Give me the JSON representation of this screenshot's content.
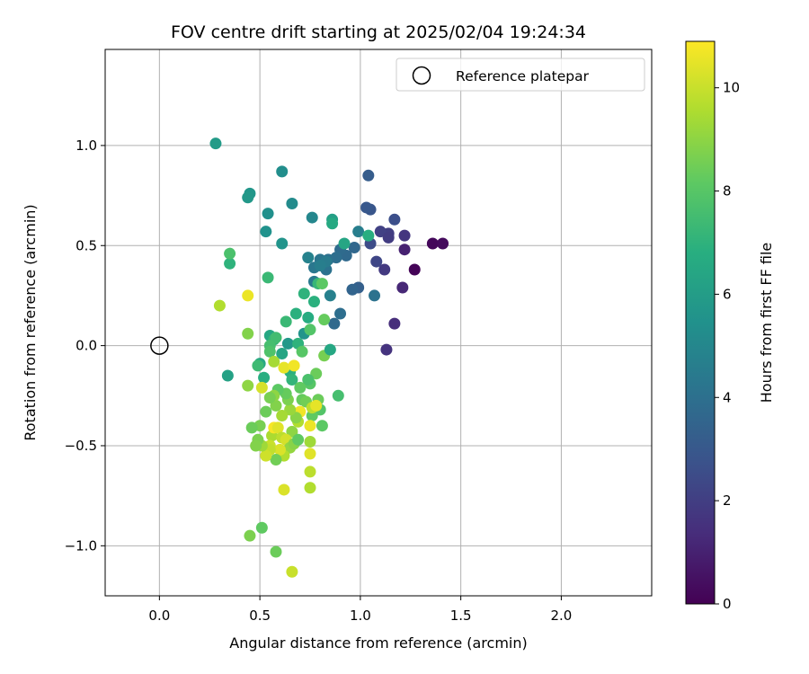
{
  "chart_data": {
    "type": "scatter",
    "title": "FOV centre drift starting at 2025/02/04 19:24:34",
    "xlabel": "Angular distance from reference (arcmin)",
    "ylabel": "Rotation from reference (arcmin)",
    "xlim": [
      -0.27,
      2.45
    ],
    "ylim": [
      -1.25,
      1.48
    ],
    "xticks": [
      0.0,
      0.5,
      1.0,
      1.5,
      2.0
    ],
    "xtick_labels": [
      "0.0",
      "0.5",
      "1.0",
      "1.5",
      "2.0"
    ],
    "yticks": [
      -1.0,
      -0.5,
      0.0,
      0.5,
      1.0
    ],
    "ytick_labels": [
      "−1.0",
      "−0.5",
      "0.0",
      "0.5",
      "1.0"
    ],
    "grid": true,
    "legend": {
      "placement": "top-right",
      "entries": [
        "Reference platepar"
      ]
    },
    "colorbar": {
      "label": "Hours from first FF file",
      "range": [
        0,
        10.9
      ],
      "ticks": [
        0,
        2,
        4,
        6,
        8,
        10
      ],
      "tick_labels": [
        "0",
        "2",
        "4",
        "6",
        "8",
        "10"
      ],
      "colormap": "viridis"
    },
    "reference": {
      "x": 0.0,
      "y": 0.0,
      "label": "Reference platepar"
    },
    "points": [
      [
        1.27,
        0.38,
        0.1
      ],
      [
        1.36,
        0.51,
        0.2
      ],
      [
        1.41,
        0.51,
        0.3
      ],
      [
        1.22,
        0.48,
        1.0
      ],
      [
        1.21,
        0.29,
        1.2
      ],
      [
        1.17,
        0.11,
        1.4
      ],
      [
        1.13,
        -0.02,
        1.6
      ],
      [
        1.12,
        0.38,
        1.8
      ],
      [
        1.14,
        0.56,
        2.0
      ],
      [
        1.1,
        0.57,
        2.1
      ],
      [
        1.08,
        0.42,
        2.3
      ],
      [
        1.05,
        0.51,
        2.5
      ],
      [
        1.17,
        0.63,
        2.6
      ],
      [
        1.22,
        0.55,
        1.7
      ],
      [
        1.14,
        0.54,
        1.9
      ],
      [
        1.05,
        0.68,
        2.9
      ],
      [
        1.03,
        0.69,
        3.0
      ],
      [
        1.04,
        0.85,
        3.2
      ],
      [
        0.99,
        0.29,
        3.3
      ],
      [
        0.96,
        0.28,
        3.5
      ],
      [
        0.97,
        0.49,
        3.6
      ],
      [
        0.93,
        0.45,
        3.7
      ],
      [
        0.9,
        0.48,
        3.8
      ],
      [
        0.88,
        0.44,
        3.9
      ],
      [
        0.84,
        0.43,
        4.0
      ],
      [
        0.87,
        0.11,
        3.7
      ],
      [
        0.9,
        0.16,
        3.9
      ],
      [
        0.83,
        0.38,
        4.1
      ],
      [
        0.8,
        0.43,
        4.2
      ],
      [
        0.77,
        0.39,
        4.3
      ],
      [
        0.77,
        0.32,
        4.4
      ],
      [
        0.83,
        0.42,
        4.5
      ],
      [
        0.8,
        0.4,
        4.6
      ],
      [
        0.85,
        0.25,
        4.7
      ],
      [
        0.74,
        0.44,
        4.8
      ],
      [
        0.76,
        0.64,
        5.0
      ],
      [
        0.66,
        0.71,
        5.2
      ],
      [
        0.61,
        0.87,
        5.3
      ],
      [
        0.54,
        0.66,
        5.4
      ],
      [
        0.53,
        0.57,
        5.5
      ],
      [
        0.61,
        0.51,
        5.6
      ],
      [
        0.45,
        0.76,
        5.7
      ],
      [
        0.44,
        0.74,
        5.8
      ],
      [
        0.28,
        1.01,
        5.9
      ],
      [
        0.72,
        0.06,
        5.6
      ],
      [
        0.64,
        0.01,
        5.8
      ],
      [
        0.99,
        0.57,
        4.6
      ],
      [
        1.07,
        0.25,
        4.1
      ],
      [
        0.92,
        0.51,
        6.4
      ],
      [
        0.86,
        0.63,
        6.1
      ],
      [
        0.86,
        0.61,
        6.6
      ],
      [
        1.04,
        0.55,
        6.8
      ],
      [
        0.77,
        0.22,
        6.9
      ],
      [
        0.72,
        0.26,
        7.0
      ],
      [
        0.79,
        0.31,
        7.2
      ],
      [
        0.74,
        0.14,
        6.7
      ],
      [
        0.68,
        0.16,
        6.9
      ],
      [
        0.69,
        0.01,
        7.0
      ],
      [
        0.63,
        0.12,
        7.3
      ],
      [
        0.55,
        0.05,
        6.5
      ],
      [
        0.57,
        0.03,
        7.1
      ],
      [
        0.58,
        0.04,
        7.5
      ],
      [
        0.61,
        -0.04,
        6.4
      ],
      [
        0.55,
        0.0,
        7.6
      ],
      [
        0.55,
        -0.03,
        7.8
      ],
      [
        0.65,
        -0.13,
        6.9
      ],
      [
        0.66,
        -0.17,
        7.1
      ],
      [
        0.52,
        -0.16,
        6.8
      ],
      [
        0.5,
        -0.09,
        6.6
      ],
      [
        0.49,
        -0.1,
        7.4
      ],
      [
        0.34,
        -0.15,
        6.2
      ],
      [
        0.54,
        0.34,
        7.3
      ],
      [
        0.35,
        0.41,
        7.0
      ],
      [
        0.35,
        0.46,
        7.7
      ],
      [
        0.81,
        0.31,
        8.1
      ],
      [
        0.82,
        0.13,
        8.3
      ],
      [
        0.75,
        0.08,
        7.9
      ],
      [
        0.71,
        -0.03,
        8.0
      ],
      [
        0.78,
        -0.14,
        8.4
      ],
      [
        0.82,
        -0.05,
        8.6
      ],
      [
        0.85,
        -0.02,
        6.5
      ],
      [
        0.89,
        -0.25,
        7.6
      ],
      [
        0.8,
        -0.32,
        7.9
      ],
      [
        0.79,
        -0.27,
        8.4
      ],
      [
        0.76,
        -0.35,
        8.2
      ],
      [
        0.75,
        -0.19,
        8.0
      ],
      [
        0.74,
        -0.17,
        7.7
      ],
      [
        0.7,
        -0.21,
        8.2
      ],
      [
        0.71,
        -0.27,
        8.3
      ],
      [
        0.73,
        -0.28,
        8.5
      ],
      [
        0.81,
        -0.4,
        8.1
      ],
      [
        0.76,
        -0.31,
        9.8
      ],
      [
        0.78,
        -0.3,
        10.5
      ],
      [
        0.75,
        -0.4,
        10.6
      ],
      [
        0.75,
        -0.48,
        9.3
      ],
      [
        0.7,
        -0.33,
        10.7
      ],
      [
        0.69,
        -0.38,
        9.6
      ],
      [
        0.68,
        -0.36,
        8.9
      ],
      [
        0.66,
        -0.43,
        9.0
      ],
      [
        0.65,
        -0.32,
        9.2
      ],
      [
        0.64,
        -0.27,
        8.7
      ],
      [
        0.63,
        -0.24,
        8.3
      ],
      [
        0.61,
        -0.35,
        9.4
      ],
      [
        0.59,
        -0.22,
        8.1
      ],
      [
        0.58,
        -0.3,
        8.8
      ],
      [
        0.57,
        -0.25,
        9.0
      ],
      [
        0.55,
        -0.26,
        8.6
      ],
      [
        0.53,
        -0.33,
        8.4
      ],
      [
        0.56,
        -0.45,
        9.5
      ],
      [
        0.55,
        -0.5,
        10.0
      ],
      [
        0.57,
        -0.41,
        10.8
      ],
      [
        0.59,
        -0.41,
        10.4
      ],
      [
        0.61,
        -0.46,
        9.8
      ],
      [
        0.63,
        -0.47,
        10.2
      ],
      [
        0.65,
        -0.51,
        9.1
      ],
      [
        0.67,
        -0.49,
        8.9
      ],
      [
        0.69,
        -0.47,
        8.2
      ],
      [
        0.62,
        -0.55,
        9.6
      ],
      [
        0.6,
        -0.52,
        10.3
      ],
      [
        0.58,
        -0.57,
        8.5
      ],
      [
        0.55,
        -0.52,
        9.9
      ],
      [
        0.53,
        -0.55,
        10.1
      ],
      [
        0.51,
        -0.5,
        9.3
      ],
      [
        0.49,
        -0.47,
        8.7
      ],
      [
        0.48,
        -0.5,
        8.8
      ],
      [
        0.5,
        -0.4,
        8.6
      ],
      [
        0.46,
        -0.41,
        8.4
      ],
      [
        0.44,
        -0.2,
        9.0
      ],
      [
        0.51,
        -0.21,
        10.2
      ],
      [
        0.57,
        -0.08,
        9.4
      ],
      [
        0.62,
        -0.11,
        10.5
      ],
      [
        0.67,
        -0.1,
        10.7
      ],
      [
        0.44,
        0.06,
        8.8
      ],
      [
        0.44,
        0.25,
        10.6
      ],
      [
        0.3,
        0.2,
        9.6
      ],
      [
        0.75,
        -0.54,
        10.4
      ],
      [
        0.75,
        -0.63,
        9.8
      ],
      [
        0.75,
        -0.71,
        9.6
      ],
      [
        0.62,
        -0.72,
        10.3
      ],
      [
        0.58,
        -1.03,
        8.4
      ],
      [
        0.66,
        -1.13,
        10.0
      ],
      [
        0.51,
        -0.91,
        8.2
      ],
      [
        0.45,
        -0.95,
        8.7
      ]
    ]
  }
}
